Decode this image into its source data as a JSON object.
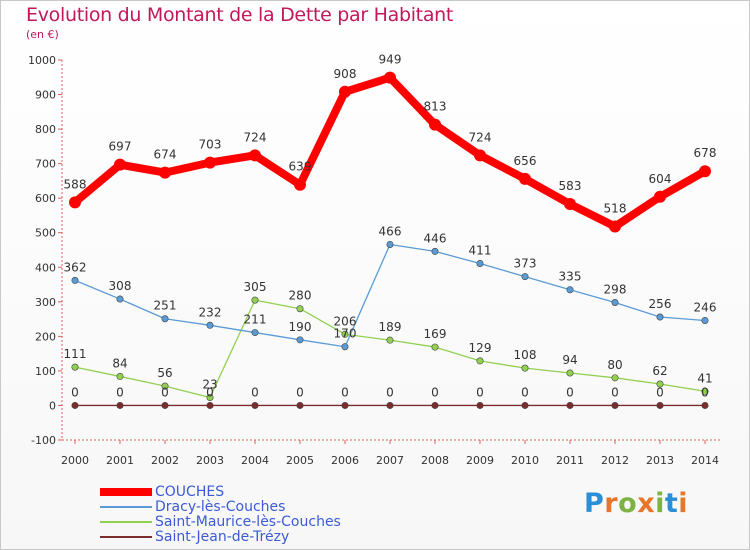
{
  "title": "Evolution du Montant de la Dette par Habitant",
  "subtitle": "(en €)",
  "brand": "Proxiti",
  "brand_colors": [
    "#2b8fd6",
    "#e8762a",
    "#7cb342",
    "#e8762a",
    "#7cb342",
    "#2b8fd6",
    "#e8762a"
  ],
  "chart_data": {
    "type": "line",
    "x": [
      "2000",
      "2001",
      "2002",
      "2003",
      "2004",
      "2005",
      "2006",
      "2007",
      "2008",
      "2009",
      "2010",
      "2011",
      "2012",
      "2013",
      "2014"
    ],
    "ylim": [
      -100,
      1000
    ],
    "yticks": [
      -100,
      0,
      100,
      200,
      300,
      400,
      500,
      600,
      700,
      800,
      900,
      1000
    ],
    "grid": false,
    "legend_position": "bottom-left",
    "series": [
      {
        "name": "COUCHES",
        "color": "#ff0000",
        "values": [
          588,
          697,
          674,
          703,
          724,
          639,
          908,
          949,
          813,
          724,
          656,
          583,
          518,
          604,
          678
        ]
      },
      {
        "name": "Dracy-lès-Couches",
        "color": "#5b9bd5",
        "values": [
          362,
          308,
          251,
          232,
          211,
          190,
          170,
          466,
          446,
          411,
          373,
          335,
          298,
          256,
          246
        ]
      },
      {
        "name": "Saint-Maurice-lès-Couches",
        "color": "#92d050",
        "values": [
          111,
          84,
          56,
          23,
          305,
          280,
          206,
          189,
          169,
          129,
          108,
          94,
          80,
          62,
          41
        ]
      },
      {
        "name": "Saint-Jean-de-Trézy",
        "color": "#7b2c2c",
        "values": [
          0,
          0,
          0,
          0,
          0,
          0,
          0,
          0,
          0,
          0,
          0,
          0,
          0,
          0,
          0
        ]
      }
    ]
  }
}
